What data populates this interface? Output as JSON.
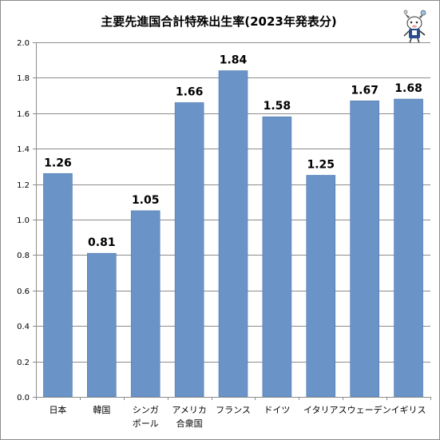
{
  "chart_data": {
    "type": "bar",
    "title": "主要先進国合計特殊出生率(2023年発表分)",
    "categories": [
      [
        "日本"
      ],
      [
        "韓国"
      ],
      [
        "シンガ",
        "ポール"
      ],
      [
        "アメリカ",
        "合衆国"
      ],
      [
        "フランス"
      ],
      [
        "ドイツ"
      ],
      [
        "イタリア"
      ],
      [
        "スウェーデン"
      ],
      [
        "イギリス"
      ]
    ],
    "values": [
      1.26,
      0.81,
      1.05,
      1.66,
      1.84,
      1.58,
      1.25,
      1.67,
      1.68
    ],
    "data_labels": [
      "1.26",
      "0.81",
      "1.05",
      "1.66",
      "1.84",
      "1.58",
      "1.25",
      "1.67",
      "1.68"
    ],
    "yticks": [
      "0.0",
      "0.2",
      "0.4",
      "0.6",
      "0.8",
      "1.0",
      "1.2",
      "1.4",
      "1.6",
      "1.8",
      "2.0"
    ],
    "ylim": [
      0,
      2.0
    ],
    "grid": true,
    "bar_color": "#6a93c7",
    "bar_edge_color": "#4f7ab3"
  },
  "mascot": {
    "icon": "mascot-icon"
  }
}
